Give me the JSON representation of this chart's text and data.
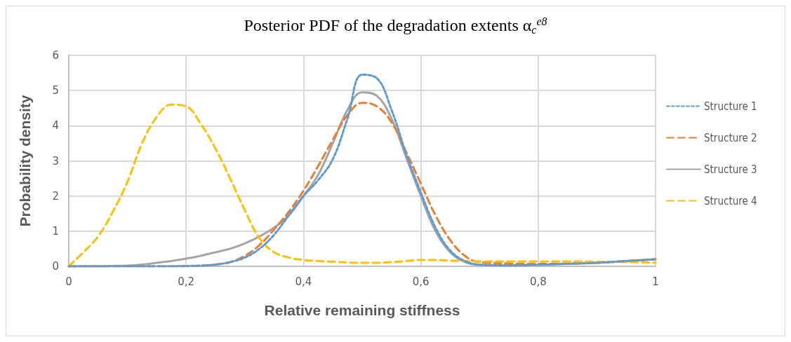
{
  "chart_data": {
    "type": "line",
    "title": "Posterior PDF of the degradation extents α$_{c}$$^{e8}$",
    "xlabel": "Relative remaining stiffness",
    "ylabel": "Probability density",
    "x": [
      0,
      0.025,
      0.05,
      0.075,
      0.1,
      0.125,
      0.15,
      0.175,
      0.2,
      0.225,
      0.25,
      0.275,
      0.3,
      0.325,
      0.35,
      0.375,
      0.4,
      0.425,
      0.45,
      0.475,
      0.5,
      0.525,
      0.55,
      0.575,
      0.6,
      0.625,
      0.65,
      0.675,
      0.7,
      0.75,
      0.8,
      0.85,
      0.9,
      0.95,
      1
    ],
    "series": [
      {
        "name": "Structure 1",
        "color": "#5b9bd5",
        "line_style": "dotted",
        "values": [
          0,
          0,
          0,
          0,
          0,
          0,
          0,
          0,
          0.01,
          0.02,
          0.05,
          0.12,
          0.25,
          0.5,
          0.9,
          1.45,
          2.0,
          2.45,
          3.05,
          4.2,
          5.45,
          5.35,
          4.45,
          3.2,
          2.1,
          1.1,
          0.45,
          0.15,
          0.05,
          0.03,
          0.05,
          0.07,
          0.1,
          0.15,
          0.2
        ]
      },
      {
        "name": "Structure 2",
        "color": "#ed7d31",
        "line_style": "dashed",
        "values": [
          0,
          0,
          0,
          0,
          0,
          0,
          0,
          0,
          0,
          0.02,
          0.05,
          0.12,
          0.3,
          0.6,
          1.05,
          1.55,
          2.15,
          2.85,
          3.6,
          4.3,
          4.65,
          4.55,
          4.1,
          3.25,
          2.35,
          1.45,
          0.75,
          0.3,
          0.12,
          0.08,
          0.07,
          0.08,
          0.1,
          0.15,
          0.2
        ]
      },
      {
        "name": "Structure 3",
        "color": "#a5a5a5",
        "line_style": "solid",
        "values": [
          0,
          0,
          0,
          0.01,
          0.02,
          0.05,
          0.1,
          0.15,
          0.22,
          0.3,
          0.4,
          0.5,
          0.65,
          0.85,
          1.1,
          1.45,
          2.0,
          2.6,
          3.5,
          4.45,
          4.95,
          4.85,
          4.2,
          3.1,
          2.0,
          1.0,
          0.4,
          0.12,
          0.04,
          0.02,
          0.04,
          0.07,
          0.1,
          0.15,
          0.2
        ]
      },
      {
        "name": "Structure 4",
        "color": "#ffc000",
        "line_style": "dashed",
        "values": [
          0,
          0.4,
          0.85,
          1.55,
          2.4,
          3.5,
          4.25,
          4.6,
          4.55,
          4.05,
          3.35,
          2.5,
          1.6,
          0.8,
          0.4,
          0.25,
          0.18,
          0.15,
          0.13,
          0.11,
          0.1,
          0.1,
          0.12,
          0.15,
          0.18,
          0.18,
          0.16,
          0.15,
          0.14,
          0.14,
          0.14,
          0.14,
          0.13,
          0.12,
          0.1
        ]
      }
    ],
    "xlim": [
      0,
      1
    ],
    "xticks": [
      0,
      {
        "value": 0.2,
        "label": "0,2"
      },
      {
        "value": 0.4,
        "label": "0,4"
      },
      {
        "value": 0.6,
        "label": "0,6"
      },
      {
        "value": 0.8,
        "label": "0,8"
      },
      1
    ],
    "ylim": [
      0,
      6
    ],
    "yticks": [
      0,
      1,
      2,
      3,
      4,
      5,
      6
    ],
    "grid": true,
    "legend": "right",
    "marker": "none"
  }
}
